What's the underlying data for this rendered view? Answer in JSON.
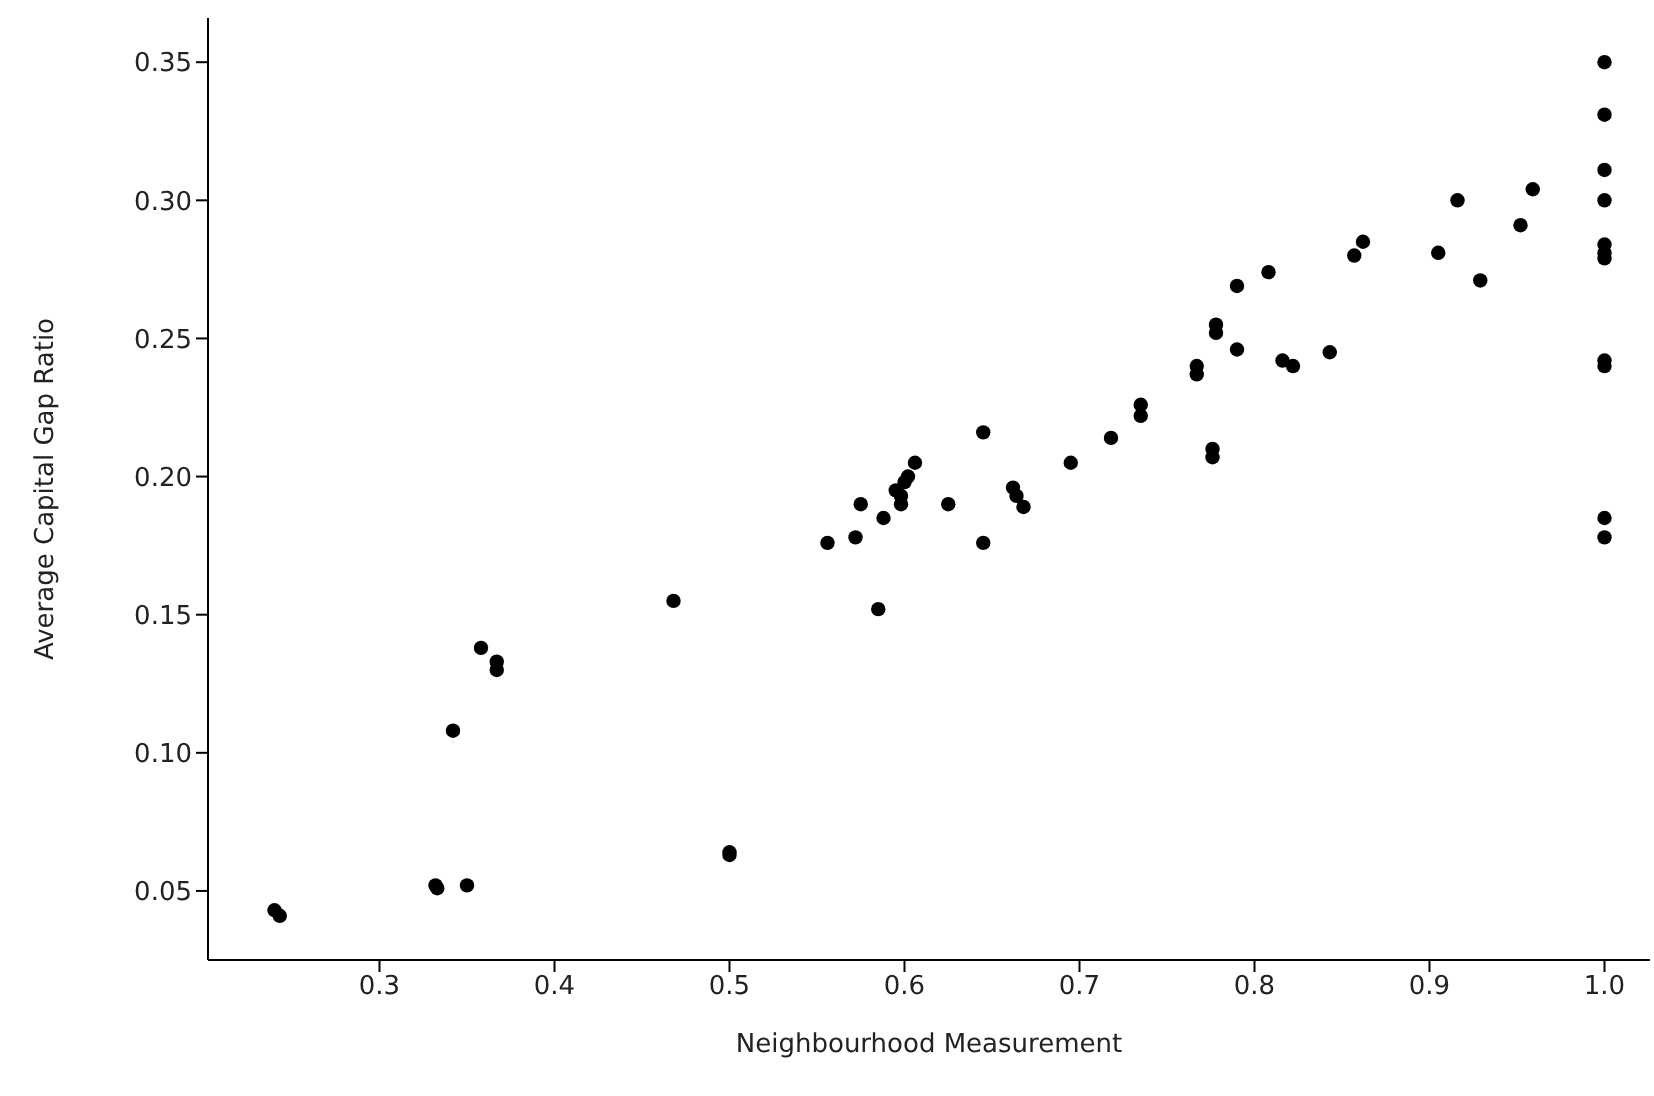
{
  "chart_data": {
    "type": "scatter",
    "xlabel": "Neighbourhood Measurement",
    "ylabel": "Average Capital Gap Ratio",
    "x": [
      0.24,
      0.243,
      0.332,
      0.333,
      0.35,
      0.342,
      0.358,
      0.367,
      0.367,
      0.468,
      0.5,
      0.5,
      0.556,
      0.572,
      0.575,
      0.585,
      0.588,
      0.595,
      0.598,
      0.6,
      0.602,
      0.598,
      0.606,
      0.625,
      0.645,
      0.645,
      0.662,
      0.664,
      0.668,
      0.695,
      0.718,
      0.735,
      0.735,
      0.767,
      0.767,
      0.776,
      0.776,
      0.778,
      0.778,
      0.79,
      0.79,
      0.808,
      0.816,
      0.822,
      0.843,
      0.857,
      0.862,
      0.905,
      0.916,
      0.929,
      0.952,
      0.959,
      1.0,
      1.0,
      1.0,
      1.0,
      1.0,
      1.0,
      1.0,
      1.0,
      1.0,
      1.0,
      1.0
    ],
    "series": [
      {
        "color": "#000000",
        "values": [
          0.043,
          0.041,
          0.052,
          0.051,
          0.052,
          0.108,
          0.138,
          0.133,
          0.13,
          0.155,
          0.064,
          0.063,
          0.176,
          0.178,
          0.19,
          0.152,
          0.185,
          0.195,
          0.19,
          0.198,
          0.2,
          0.193,
          0.205,
          0.19,
          0.216,
          0.176,
          0.196,
          0.193,
          0.189,
          0.205,
          0.214,
          0.226,
          0.222,
          0.24,
          0.237,
          0.21,
          0.207,
          0.255,
          0.252,
          0.269,
          0.246,
          0.274,
          0.242,
          0.24,
          0.245,
          0.28,
          0.285,
          0.281,
          0.3,
          0.271,
          0.291,
          0.304,
          0.35,
          0.331,
          0.311,
          0.3,
          0.284,
          0.281,
          0.279,
          0.242,
          0.24,
          0.185,
          0.178
        ]
      }
    ],
    "xlim": [
      0.202,
      1.026
    ],
    "ylim": [
      0.025,
      0.366
    ],
    "xticks": [
      0.3,
      0.4,
      0.5,
      0.6,
      0.7,
      0.8,
      0.9,
      {
        "value": 1,
        "label": "1.0"
      }
    ],
    "yticks": [
      0.05,
      {
        "value": 0.1,
        "label": "0.10"
      },
      0.15,
      {
        "value": 0.2,
        "label": "0.20"
      },
      0.25,
      {
        "value": 0.3,
        "label": "0.30"
      },
      0.35
    ],
    "marker": "circle",
    "grid": false,
    "legend": false
  }
}
